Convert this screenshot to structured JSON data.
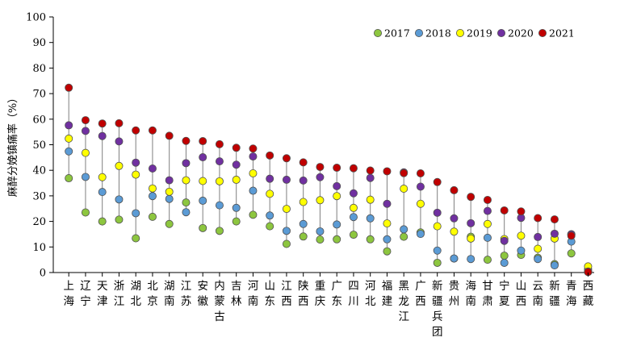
{
  "chart_data": {
    "type": "scatter",
    "ylabel": "麻醉分娩镇痛率（%）",
    "xlabel": "",
    "title": "",
    "ylim": [
      0,
      100
    ],
    "yticks": [
      0,
      10,
      20,
      30,
      40,
      50,
      60,
      70,
      80,
      90,
      100
    ],
    "grid": false,
    "legend_position": "top-right",
    "categories": [
      "上海",
      "辽宁",
      "天津",
      "浙江",
      "湖北",
      "北京",
      "湖南",
      "江苏",
      "安徽",
      "内蒙古",
      "吉林",
      "河南",
      "山东",
      "江西",
      "陕西",
      "重庆",
      "广东",
      "四川",
      "河北",
      "福建",
      "黑龙江",
      "广西",
      "新疆兵团",
      "贵州",
      "海南",
      "甘肃",
      "宁夏",
      "山西",
      "云南",
      "新疆",
      "青海",
      "西藏"
    ],
    "series": [
      {
        "name": "2017",
        "color": "#8dc63f",
        "values": [
          36.9,
          23.5,
          20.0,
          20.7,
          13.4,
          21.8,
          19.0,
          27.4,
          17.4,
          16.3,
          20.0,
          22.6,
          18.1,
          11.2,
          14.1,
          12.9,
          13.0,
          14.8,
          13.0,
          8.3,
          14.0,
          15.7,
          3.8,
          5.5,
          14.0,
          5.0,
          6.6,
          6.9,
          5.8,
          3.3,
          7.5,
          0.3
        ]
      },
      {
        "name": "2018",
        "color": "#5b9bd5",
        "values": [
          47.4,
          37.4,
          31.5,
          28.6,
          23.2,
          29.9,
          28.8,
          23.6,
          28.1,
          26.3,
          25.3,
          32.0,
          22.3,
          16.3,
          19.0,
          16.1,
          18.8,
          21.7,
          21.2,
          13.0,
          16.9,
          15.1,
          8.6,
          5.5,
          5.3,
          13.6,
          3.8,
          8.6,
          5.3,
          2.8,
          12.1,
          1.3
        ]
      },
      {
        "name": "2019",
        "color": "#ffff00",
        "values": [
          52.4,
          46.8,
          37.3,
          41.7,
          38.3,
          32.9,
          31.6,
          36.1,
          35.8,
          35.7,
          36.3,
          38.8,
          30.8,
          24.9,
          27.6,
          28.3,
          29.9,
          25.3,
          28.5,
          19.2,
          32.8,
          26.9,
          18.1,
          16.0,
          13.3,
          19.0,
          13.1,
          14.4,
          9.3,
          13.3,
          15.0,
          2.4
        ]
      },
      {
        "name": "2020",
        "color": "#7030a0",
        "values": [
          57.6,
          55.4,
          53.4,
          51.3,
          43.0,
          40.7,
          36.1,
          42.8,
          45.1,
          43.5,
          42.2,
          45.4,
          36.7,
          36.3,
          36.0,
          37.3,
          33.8,
          31.0,
          37.0,
          26.9,
          39.2,
          33.6,
          23.4,
          21.2,
          19.3,
          24.1,
          12.4,
          21.4,
          13.9,
          15.2,
          14.9,
          0.4
        ]
      },
      {
        "name": "2021",
        "color": "#c00000",
        "values": [
          72.3,
          59.6,
          58.3,
          58.4,
          55.6,
          55.6,
          53.5,
          51.5,
          51.4,
          50.2,
          48.8,
          48.5,
          45.8,
          44.7,
          43.1,
          41.3,
          41.0,
          40.8,
          39.9,
          39.6,
          38.9,
          38.8,
          35.4,
          32.2,
          29.6,
          28.4,
          24.3,
          23.9,
          21.3,
          20.8,
          14.4,
          0.2
        ]
      }
    ]
  }
}
